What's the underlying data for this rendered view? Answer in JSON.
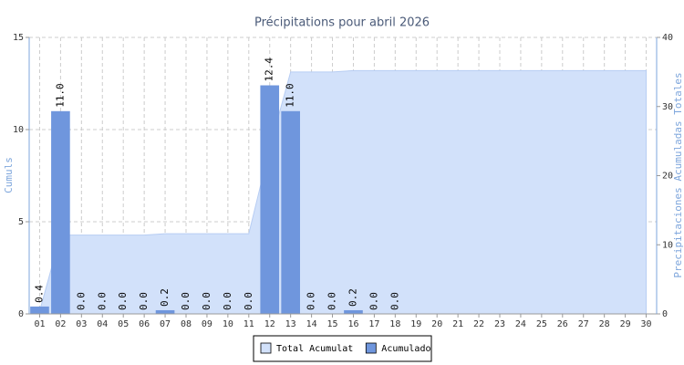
{
  "chart_data": {
    "type": "bar",
    "title": "Précipitations pour abril 2026",
    "y_label": "Cumuls",
    "y2_label": "Precipitaciones Acumuladas Totales",
    "categories": [
      "01",
      "02",
      "03",
      "04",
      "05",
      "06",
      "07",
      "08",
      "09",
      "10",
      "11",
      "12",
      "13",
      "14",
      "15",
      "16",
      "17",
      "18",
      "19",
      "20",
      "21",
      "22",
      "23",
      "24",
      "25",
      "26",
      "27",
      "28",
      "29",
      "30"
    ],
    "ylim": [
      0,
      15
    ],
    "yticks": [
      0,
      5,
      10,
      15
    ],
    "y2lim": [
      0,
      40
    ],
    "y2ticks": [
      0,
      10,
      20,
      30,
      40
    ],
    "grid": true,
    "legend": "bottom",
    "series": [
      {
        "name": "Total Acumulat",
        "type": "area",
        "axis": "y2",
        "color": "#d2e1fa",
        "values": [
          0.4,
          11.4,
          11.4,
          11.4,
          11.4,
          11.4,
          11.6,
          11.6,
          11.6,
          11.6,
          11.6,
          24.0,
          35.0,
          35.0,
          35.0,
          35.2,
          35.2,
          35.2,
          35.2,
          35.2,
          35.2,
          35.2,
          35.2,
          35.2,
          35.2,
          35.2,
          35.2,
          35.2,
          35.2,
          35.2
        ]
      },
      {
        "name": "Acumulado",
        "type": "bar",
        "color": "#6f96dd",
        "values": [
          0.4,
          11.0,
          0.0,
          0.0,
          0.0,
          0.0,
          0.2,
          0.0,
          0.0,
          0.0,
          0.0,
          12.4,
          11.0,
          0.0,
          0.0,
          0.2,
          0.0,
          0.0,
          null,
          null,
          null,
          null,
          null,
          null,
          null,
          null,
          null,
          null,
          null,
          null
        ],
        "value_labels": [
          "0.4",
          "11.0",
          "0.0",
          "0.0",
          "0.0",
          "0.0",
          "0.2",
          "0.0",
          "0.0",
          "0.0",
          "0.0",
          "12.4",
          "11.0",
          "0.0",
          "0.0",
          "0.2",
          "0.0",
          "0.0",
          null,
          null,
          null,
          null,
          null,
          null,
          null,
          null,
          null,
          null,
          null,
          null
        ]
      }
    ]
  }
}
